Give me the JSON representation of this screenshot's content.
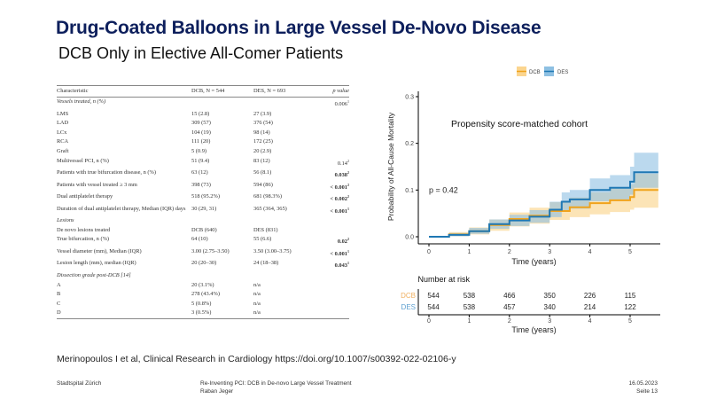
{
  "slide": {
    "title": "Drug-Coated Balloons in Large Vessel De-Novo Disease",
    "subtitle": "DCB Only in Elective All-Comer Patients",
    "citation": "Merinopoulos I et al, Clinical Research in Cardiology https://doi.org/10.1007/s00392-022-02106-y",
    "footer": {
      "left": "Stadtspital Zürich",
      "center_line1": "Re-Inventing PCI: DCB in De-novo Large Vessel Treatment",
      "center_line2": "Raban Jeger",
      "date": "16.05.2023",
      "page": "Seite 13"
    }
  },
  "table": {
    "headers": [
      "Characteristic",
      "DCB, N = 544",
      "DES, N = 693",
      "p value"
    ],
    "rows": [
      {
        "label": "Vessels treated, n (%)",
        "dcb": "",
        "des": "",
        "p": "0.006",
        "sup": "1",
        "italic": true,
        "bold_p": false
      },
      {
        "label": "LMS",
        "dcb": "15 (2.8)",
        "des": "27 (3.9)",
        "p": "",
        "sup": ""
      },
      {
        "label": "LAD",
        "dcb": "309 (57)",
        "des": "376 (54)",
        "p": "",
        "sup": ""
      },
      {
        "label": "LCx",
        "dcb": "104 (19)",
        "des": "98 (14)",
        "p": "",
        "sup": ""
      },
      {
        "label": "RCA",
        "dcb": "111 (20)",
        "des": "172 (25)",
        "p": "",
        "sup": ""
      },
      {
        "label": "Graft",
        "dcb": "5 (0.9)",
        "des": "20 (2.9)",
        "p": "",
        "sup": ""
      },
      {
        "label": "Multivessel PCI, n (%)",
        "dcb": "51 (9.4)",
        "des": "83 (12)",
        "p": "0.14",
        "sup": "2",
        "bold_p": false
      },
      {
        "label": "Patients with true bifurcation disease, n (%)",
        "dcb": "63 (12)",
        "des": "56 (8.1)",
        "p": "0.038",
        "sup": "2",
        "bold_p": true
      },
      {
        "label": "Patients with vessel treated ≥ 3 mm",
        "dcb": "398 (73)",
        "des": "594 (86)",
        "p": "< 0.001",
        "sup": "2",
        "bold_p": true
      },
      {
        "label": "Dual antiplatelet therapy",
        "dcb": "518 (95.2%)",
        "des": "681 (98.3%)",
        "p": "< 0.002",
        "sup": "2",
        "bold_p": true
      },
      {
        "label": "Duration of dual antiplatelet therapy, Median (IQR) days",
        "dcb": "30 (29, 31)",
        "des": "365 (364, 365)",
        "p": "< 0.001",
        "sup": "1",
        "bold_p": true,
        "tall": true
      },
      {
        "label": "Lesions",
        "dcb": "",
        "des": "",
        "p": "",
        "sup": "",
        "italic": true
      },
      {
        "label": "De novo lesions treated",
        "dcb": "DCB (640)",
        "des": "DES (831)",
        "p": "",
        "sup": ""
      },
      {
        "label": "True bifurcation, n (%)",
        "dcb": "64 (10)",
        "des": "55 (6.6)",
        "p": "0.02",
        "sup": "2",
        "bold_p": true
      },
      {
        "label": "Vessel diameter (mm), Median (IQR)",
        "dcb": "3.00 (2.75–3.50)",
        "des": "3.50 (3.00–3.75)",
        "p": "< 0.001",
        "sup": "1",
        "bold_p": true
      },
      {
        "label": "Lesion length (mm), median (IQR)",
        "dcb": "20 (20–30)",
        "des": "24 (18–38)",
        "p": "0.043",
        "sup": "1",
        "bold_p": true
      },
      {
        "label": "Dissection grade post-DCB [14]",
        "dcb": "",
        "des": "",
        "p": "",
        "sup": "",
        "italic": true
      },
      {
        "label": "A",
        "dcb": "20 (3.1%)",
        "des": "n/a",
        "p": "",
        "sup": ""
      },
      {
        "label": "B",
        "dcb": "278 (43.4%)",
        "des": "n/a",
        "p": "",
        "sup": ""
      },
      {
        "label": "C",
        "dcb": "5 (0.8%)",
        "des": "n/a",
        "p": "",
        "sup": ""
      },
      {
        "label": "D",
        "dcb": "3 (0.5%)",
        "des": "n/a",
        "p": "",
        "sup": ""
      }
    ]
  },
  "chart_data": {
    "type": "line",
    "title": "Propensity score-matched cohort",
    "annotation": "p = 0.42",
    "xlabel": "Time (years)",
    "ylabel": "Probability of All-Cause Mortality",
    "xlim": [
      0,
      5.7
    ],
    "ylim": [
      0,
      0.3
    ],
    "xticks": [
      0,
      1,
      2,
      3,
      4,
      5
    ],
    "yticks": [
      "0.0",
      "0.1",
      "0.2",
      "0.3"
    ],
    "legend": {
      "position": "top",
      "entries": [
        "DCB",
        "DES"
      ]
    },
    "colors": {
      "DCB": "#f0a31c",
      "DES": "#1f78b4",
      "DCB_band": "#fbd58f",
      "DES_band": "#8ec0e2"
    },
    "series": [
      {
        "name": "DCB",
        "x": [
          0,
          0.5,
          1.0,
          1.5,
          2.0,
          2.5,
          3.0,
          3.5,
          4.0,
          4.5,
          5.0,
          5.1,
          5.7
        ],
        "y": [
          0,
          0.005,
          0.012,
          0.025,
          0.038,
          0.045,
          0.055,
          0.063,
          0.072,
          0.078,
          0.085,
          0.1,
          0.1
        ],
        "lower": [
          0,
          0.001,
          0.005,
          0.013,
          0.022,
          0.028,
          0.036,
          0.042,
          0.048,
          0.053,
          0.058,
          0.062,
          0.062
        ],
        "upper": [
          0,
          0.01,
          0.02,
          0.037,
          0.052,
          0.062,
          0.074,
          0.084,
          0.095,
          0.103,
          0.112,
          0.135,
          0.135
        ]
      },
      {
        "name": "DES",
        "x": [
          0,
          0.5,
          1.0,
          1.5,
          2.0,
          2.5,
          3.0,
          3.3,
          3.5,
          4.0,
          4.5,
          5.0,
          5.1,
          5.7
        ],
        "y": [
          0,
          0.004,
          0.012,
          0.027,
          0.035,
          0.043,
          0.058,
          0.075,
          0.08,
          0.1,
          0.105,
          0.118,
          0.138,
          0.138
        ],
        "lower": [
          0,
          0.001,
          0.006,
          0.017,
          0.023,
          0.03,
          0.042,
          0.056,
          0.06,
          0.076,
          0.08,
          0.09,
          0.105,
          0.105
        ],
        "upper": [
          0,
          0.008,
          0.019,
          0.037,
          0.047,
          0.057,
          0.075,
          0.095,
          0.1,
          0.125,
          0.132,
          0.15,
          0.18,
          0.18
        ]
      }
    ],
    "risk_table": {
      "title": "Number at risk",
      "times": [
        0,
        1,
        2,
        3,
        4,
        5
      ],
      "rows": [
        {
          "name": "DCB",
          "values": [
            544,
            538,
            466,
            350,
            226,
            115
          ]
        },
        {
          "name": "DES",
          "values": [
            544,
            538,
            457,
            340,
            214,
            122
          ]
        }
      ],
      "xlabel": "Time (years)"
    }
  }
}
